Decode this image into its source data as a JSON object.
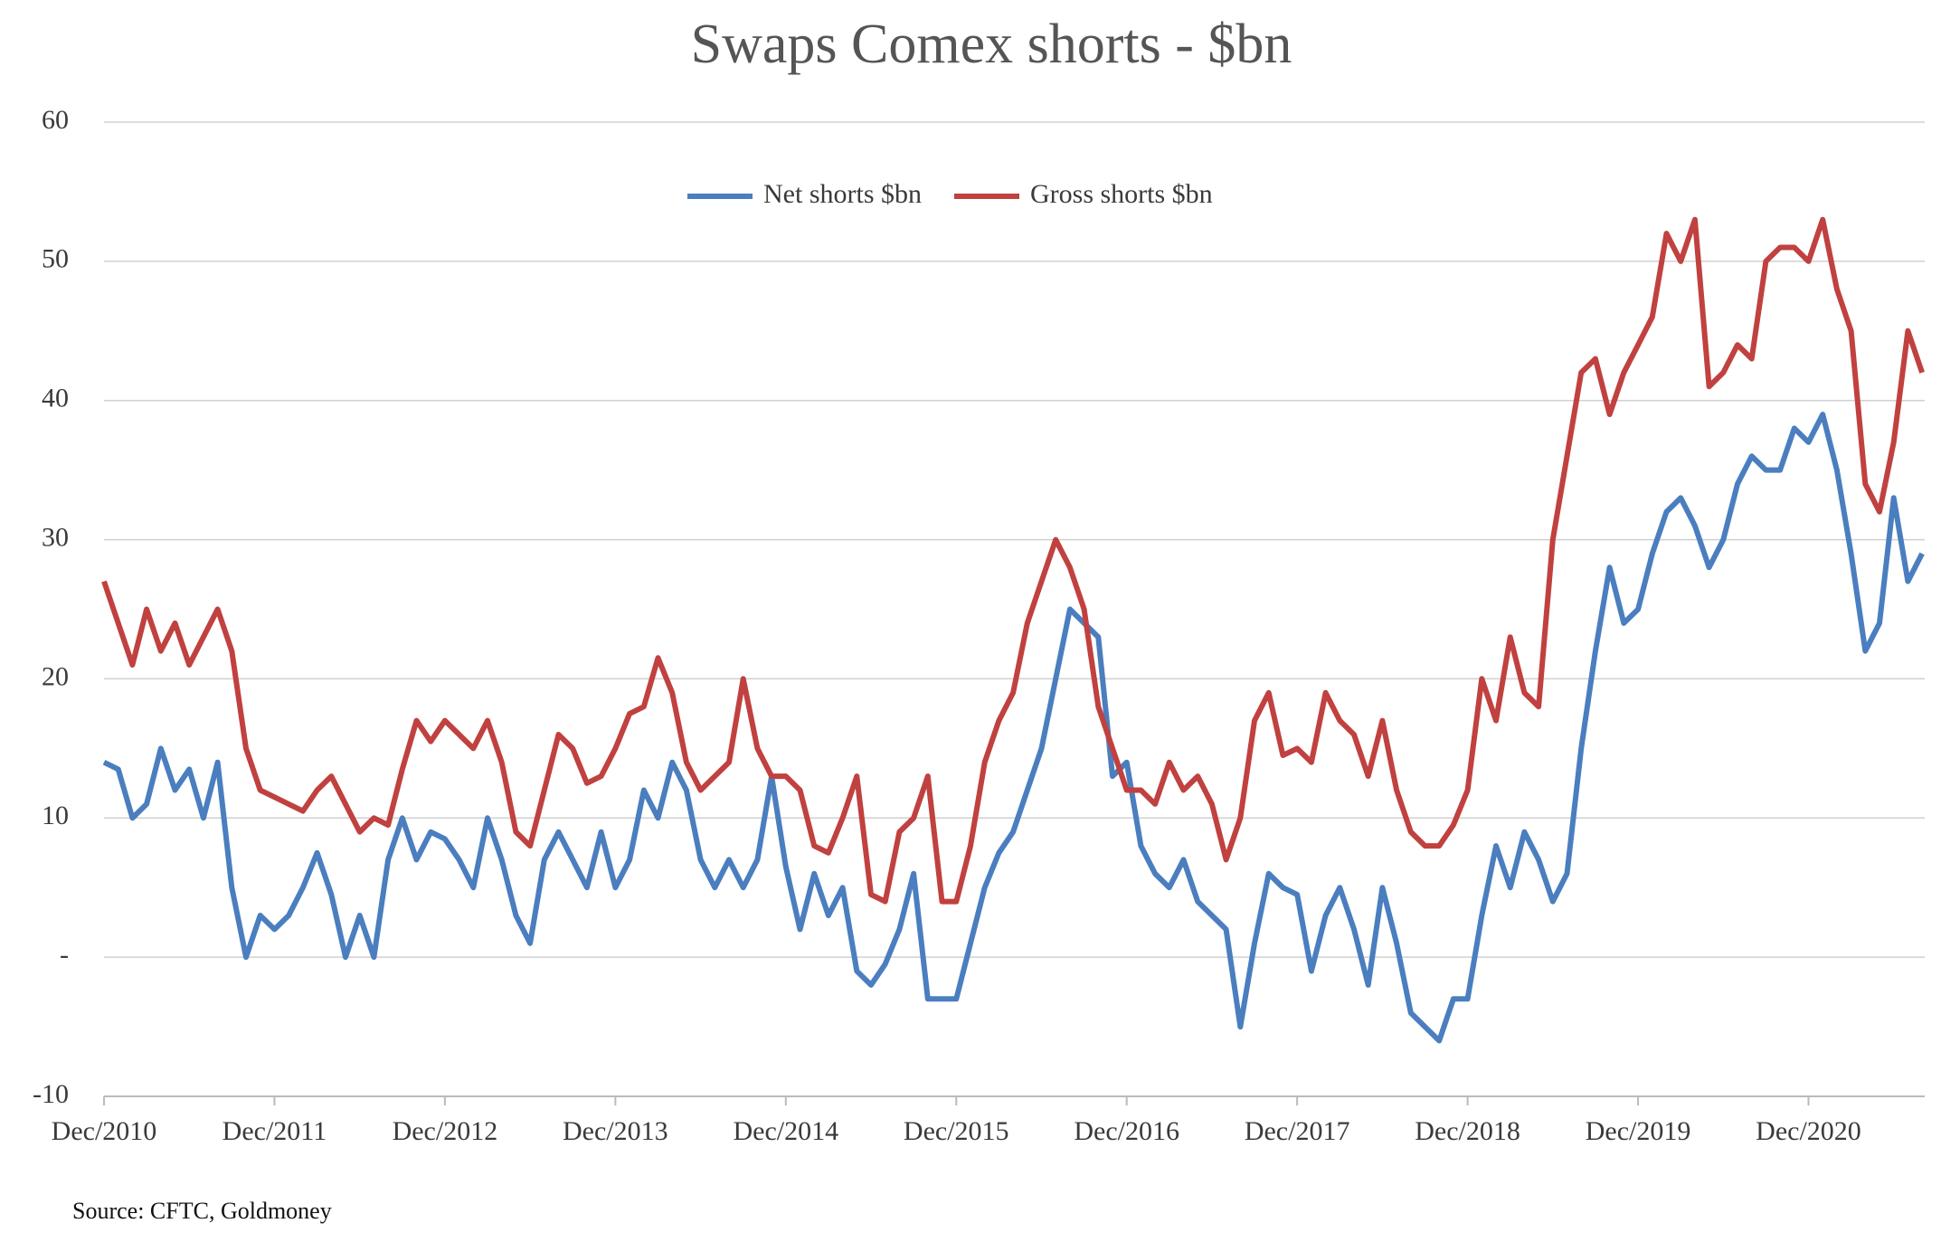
{
  "chart_data": {
    "type": "line",
    "title": "Swaps Comex shorts - $bn",
    "source": "Source: CFTC, Goldmoney",
    "legend": "top",
    "grid": true,
    "categories": [
      "Dec/2010",
      null,
      null,
      null,
      null,
      null,
      null,
      null,
      null,
      null,
      null,
      null,
      "Dec/2011",
      null,
      null,
      null,
      null,
      null,
      null,
      null,
      null,
      null,
      null,
      null,
      "Dec/2012",
      null,
      null,
      null,
      null,
      null,
      null,
      null,
      null,
      null,
      null,
      null,
      "Dec/2013",
      null,
      null,
      null,
      null,
      null,
      null,
      null,
      null,
      null,
      null,
      null,
      "Dec/2014",
      null,
      null,
      null,
      null,
      null,
      null,
      null,
      null,
      null,
      null,
      null,
      "Dec/2015",
      null,
      null,
      null,
      null,
      null,
      null,
      null,
      null,
      null,
      null,
      null,
      "Dec/2016",
      null,
      null,
      null,
      null,
      null,
      null,
      null,
      null,
      null,
      null,
      null,
      "Dec/2017",
      null,
      null,
      null,
      null,
      null,
      null,
      null,
      null,
      null,
      null,
      null,
      "Dec/2018",
      null,
      null,
      null,
      null,
      null,
      null,
      null,
      null,
      null,
      null,
      null,
      "Dec/2019",
      null,
      null,
      null,
      null,
      null,
      null,
      null,
      null,
      null,
      null,
      null,
      "Dec/2020",
      null,
      null,
      null,
      null,
      null,
      null,
      null,
      null
    ],
    "series": [
      {
        "name": "Net shorts $bn",
        "color": "#4a7ebf",
        "values": [
          14,
          13.5,
          10,
          11,
          15,
          12,
          13.5,
          10,
          14,
          5,
          0,
          3,
          2,
          3,
          5,
          7.5,
          4.5,
          0,
          3,
          0,
          7,
          10,
          7,
          9,
          8.5,
          7,
          5,
          10,
          7,
          3,
          1,
          7,
          9,
          7,
          5,
          9,
          5,
          7,
          12,
          10,
          14,
          12,
          7,
          5,
          7,
          5,
          7,
          13,
          6.5,
          2,
          6,
          3,
          5,
          -1,
          -2,
          -0.5,
          2,
          6,
          -3,
          -3,
          -3,
          1,
          5,
          7.5,
          9,
          12,
          15,
          20,
          25,
          24,
          23,
          13,
          14,
          8,
          6,
          5,
          7,
          4,
          3,
          2,
          -5,
          1,
          6,
          5,
          4.5,
          -1,
          3,
          5,
          2,
          -2,
          5,
          1,
          -4,
          -5,
          -6,
          -3,
          -3,
          3,
          8,
          5,
          9,
          7,
          4,
          6,
          15,
          22,
          28,
          24,
          25,
          29,
          32,
          33,
          31,
          28,
          30,
          34,
          36,
          35,
          35,
          38,
          37,
          39,
          35,
          29,
          22,
          24,
          33,
          27,
          29
        ]
      },
      {
        "name": "Gross shorts $bn",
        "color": "#c0413f",
        "values": [
          27,
          24,
          21,
          25,
          22,
          24,
          21,
          23,
          25,
          22,
          15,
          12,
          11.5,
          11,
          10.5,
          12,
          13,
          11,
          9,
          10,
          9.5,
          13.5,
          17,
          15.5,
          17,
          16,
          15,
          17,
          14,
          9,
          8,
          12,
          16,
          15,
          12.5,
          13,
          15,
          17.5,
          18,
          21.5,
          19,
          14,
          12,
          13,
          14,
          20,
          15,
          13,
          13,
          12,
          8,
          7.5,
          10,
          13,
          4.5,
          4,
          9,
          10,
          13,
          4,
          4,
          8,
          14,
          17,
          19,
          24,
          27,
          30,
          28,
          25,
          18,
          15,
          12,
          12,
          11,
          14,
          12,
          13,
          11,
          7,
          10,
          17,
          19,
          14.5,
          15,
          14,
          19,
          17,
          16,
          13,
          17,
          12,
          9,
          8,
          8,
          9.5,
          12,
          20,
          17,
          23,
          19,
          18,
          30,
          36,
          42,
          43,
          39,
          42,
          44,
          46,
          52,
          50,
          53,
          41,
          42,
          44,
          43,
          50,
          51,
          51,
          50,
          53,
          48,
          45,
          34,
          32,
          37,
          45,
          42
        ]
      }
    ],
    "ylim": [
      -10,
      60
    ],
    "yticks": [
      -10,
      {
        "value": 0,
        "label": "-"
      },
      10,
      20,
      30,
      40,
      50,
      60
    ]
  }
}
